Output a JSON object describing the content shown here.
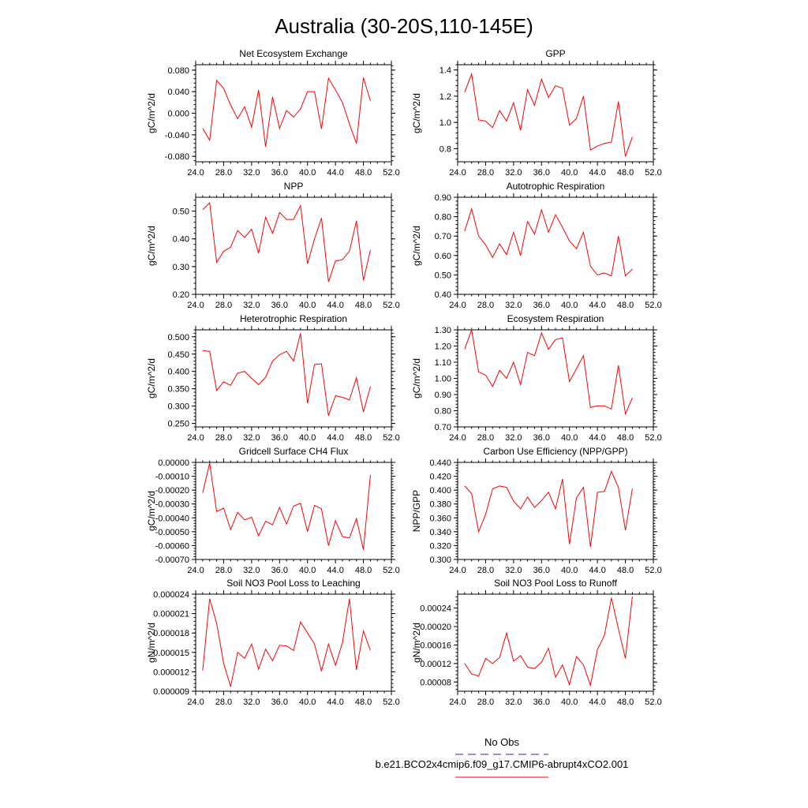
{
  "title": "Australia (30-20S,110-145E)",
  "colors": {
    "series": "#ff0000",
    "obs": "#5050c8",
    "axis": "#000000"
  },
  "legend": {
    "placement": "bottom-center",
    "entries": [
      {
        "label": "No Obs",
        "style": "dashed",
        "color": "#5050c8"
      },
      {
        "label": "b.e21.BCO2x4cmip6.f09_g17.CMIP6-abrupt4xCO2.001",
        "style": "solid",
        "color": "#ff0000"
      }
    ]
  },
  "chart_data": [
    {
      "type": "line",
      "title": "Net Ecosystem Exchange",
      "ylabel": "gC/m^2/d",
      "xlim": [
        24,
        52
      ],
      "ylim": [
        -0.09,
        0.09
      ],
      "xticks": [
        "24.0",
        "28.0",
        "32.0",
        "36.0",
        "40.0",
        "44.0",
        "48.0",
        "52.0"
      ],
      "yticks": [
        -0.08,
        -0.04,
        0.0,
        0.04,
        0.08
      ],
      "ytick_labels": [
        "-0.080",
        "-0.040",
        "0.000",
        "0.040",
        "0.080"
      ],
      "x": [
        25,
        26,
        27,
        28,
        29,
        30,
        31,
        32,
        33,
        34,
        35,
        36,
        37,
        38,
        39,
        40,
        41,
        42,
        43,
        44,
        45,
        46,
        47,
        48,
        49
      ],
      "values": [
        -0.028,
        -0.05,
        0.061,
        0.046,
        0.015,
        -0.01,
        0.012,
        -0.026,
        0.043,
        -0.062,
        0.03,
        -0.028,
        0.005,
        -0.007,
        0.008,
        0.04,
        0.04,
        -0.029,
        0.065,
        0.043,
        0.02,
        -0.02,
        -0.056,
        0.066,
        0.023
      ]
    },
    {
      "type": "line",
      "title": "GPP",
      "ylabel": "gC/m^2/d",
      "xlim": [
        24,
        52
      ],
      "ylim": [
        0.7,
        1.44
      ],
      "xticks": [
        "24.0",
        "28.0",
        "32.0",
        "36.0",
        "40.0",
        "44.0",
        "48.0",
        "52.0"
      ],
      "yticks": [
        0.8,
        1.0,
        1.2,
        1.4
      ],
      "ytick_labels": [
        "0.8",
        "1.0",
        "1.2",
        "1.4"
      ],
      "x": [
        25,
        26,
        27,
        28,
        29,
        30,
        31,
        32,
        33,
        34,
        35,
        36,
        37,
        38,
        39,
        40,
        41,
        42,
        43,
        44,
        45,
        46,
        47,
        48,
        49
      ],
      "values": [
        1.23,
        1.37,
        1.02,
        1.01,
        0.96,
        1.09,
        1.01,
        1.15,
        0.94,
        1.25,
        1.13,
        1.33,
        1.19,
        1.28,
        1.26,
        0.98,
        1.03,
        1.2,
        0.79,
        0.82,
        0.84,
        0.85,
        1.16,
        0.74,
        0.89
      ]
    },
    {
      "type": "line",
      "title": "NPP",
      "ylabel": "gC/m^2/d",
      "xlim": [
        24,
        52
      ],
      "ylim": [
        0.2,
        0.55
      ],
      "xticks": [
        "24.0",
        "28.0",
        "32.0",
        "36.0",
        "40.0",
        "44.0",
        "48.0",
        "52.0"
      ],
      "yticks": [
        0.2,
        0.3,
        0.4,
        0.5
      ],
      "ytick_labels": [
        "0.20",
        "0.30",
        "0.40",
        "0.50"
      ],
      "x": [
        25,
        26,
        27,
        28,
        29,
        30,
        31,
        32,
        33,
        34,
        35,
        36,
        37,
        38,
        39,
        40,
        41,
        42,
        43,
        44,
        45,
        46,
        47,
        48,
        49
      ],
      "values": [
        0.505,
        0.53,
        0.315,
        0.355,
        0.37,
        0.43,
        0.405,
        0.435,
        0.348,
        0.478,
        0.42,
        0.495,
        0.47,
        0.47,
        0.52,
        0.31,
        0.4,
        0.475,
        0.245,
        0.32,
        0.325,
        0.355,
        0.465,
        0.25,
        0.36
      ]
    },
    {
      "type": "line",
      "title": "Autotrophic Respiration",
      "ylabel": "gC/m^2/d",
      "xlim": [
        24,
        52
      ],
      "ylim": [
        0.4,
        0.9
      ],
      "xticks": [
        "24.0",
        "28.0",
        "32.0",
        "36.0",
        "40.0",
        "44.0",
        "48.0",
        "52.0"
      ],
      "yticks": [
        0.4,
        0.5,
        0.6,
        0.7,
        0.8,
        0.9
      ],
      "ytick_labels": [
        "0.40",
        "0.50",
        "0.60",
        "0.70",
        "0.80",
        "0.90"
      ],
      "x": [
        25,
        26,
        27,
        28,
        29,
        30,
        31,
        32,
        33,
        34,
        35,
        36,
        37,
        38,
        39,
        40,
        41,
        42,
        43,
        44,
        45,
        46,
        47,
        48,
        49
      ],
      "values": [
        0.725,
        0.84,
        0.7,
        0.655,
        0.59,
        0.66,
        0.605,
        0.72,
        0.6,
        0.775,
        0.71,
        0.835,
        0.72,
        0.81,
        0.745,
        0.675,
        0.635,
        0.72,
        0.545,
        0.5,
        0.51,
        0.495,
        0.7,
        0.495,
        0.53
      ]
    },
    {
      "type": "line",
      "title": "Heterotrophic Respiration",
      "ylabel": "gC/m^2/d",
      "xlim": [
        24,
        52
      ],
      "ylim": [
        0.24,
        0.52
      ],
      "xticks": [
        "24.0",
        "28.0",
        "32.0",
        "36.0",
        "40.0",
        "44.0",
        "48.0",
        "52.0"
      ],
      "yticks": [
        0.25,
        0.3,
        0.35,
        0.4,
        0.45,
        0.5
      ],
      "ytick_labels": [
        "0.250",
        "0.300",
        "0.350",
        "0.400",
        "0.450",
        "0.500"
      ],
      "x": [
        25,
        26,
        27,
        28,
        29,
        30,
        31,
        32,
        33,
        34,
        35,
        36,
        37,
        38,
        39,
        40,
        41,
        42,
        43,
        44,
        45,
        46,
        47,
        48,
        49
      ],
      "values": [
        0.46,
        0.458,
        0.345,
        0.37,
        0.36,
        0.395,
        0.4,
        0.38,
        0.362,
        0.383,
        0.43,
        0.448,
        0.458,
        0.43,
        0.51,
        0.308,
        0.42,
        0.422,
        0.272,
        0.33,
        0.325,
        0.318,
        0.382,
        0.283,
        0.356
      ]
    },
    {
      "type": "line",
      "title": "Ecosystem Respiration",
      "ylabel": "gC/m^2/d",
      "xlim": [
        24,
        52
      ],
      "ylim": [
        0.7,
        1.3
      ],
      "xticks": [
        "24.0",
        "28.0",
        "32.0",
        "36.0",
        "40.0",
        "44.0",
        "48.0",
        "52.0"
      ],
      "yticks": [
        0.7,
        0.8,
        0.9,
        1.0,
        1.1,
        1.2,
        1.3
      ],
      "ytick_labels": [
        "0.70",
        "0.80",
        "0.90",
        "1.00",
        "1.10",
        "1.20",
        "1.30"
      ],
      "x": [
        25,
        26,
        27,
        28,
        29,
        30,
        31,
        32,
        33,
        34,
        35,
        36,
        37,
        38,
        39,
        40,
        41,
        42,
        43,
        44,
        45,
        46,
        47,
        48,
        49
      ],
      "values": [
        1.18,
        1.3,
        1.04,
        1.02,
        0.95,
        1.05,
        1.0,
        1.1,
        0.96,
        1.16,
        1.14,
        1.28,
        1.18,
        1.24,
        1.25,
        0.98,
        1.06,
        1.14,
        0.82,
        0.83,
        0.83,
        0.81,
        1.08,
        0.78,
        0.88
      ]
    },
    {
      "type": "line",
      "title": "Gridcell Surface CH4 Flux",
      "ylabel": "gC/m^2/d",
      "xlim": [
        24,
        52
      ],
      "ylim": [
        -0.0007,
        0.0
      ],
      "xticks": [
        "24.0",
        "28.0",
        "32.0",
        "36.0",
        "40.0",
        "44.0",
        "48.0",
        "52.0"
      ],
      "yticks": [
        -0.0007,
        -0.0006,
        -0.0005,
        -0.0004,
        -0.0003,
        -0.0002,
        -0.0001,
        0.0
      ],
      "ytick_labels": [
        "-0.00070",
        "-0.00060",
        "-0.00050",
        "-0.00040",
        "-0.00030",
        "-0.00020",
        "-0.00010",
        "0.00000"
      ],
      "x": [
        25,
        26,
        27,
        28,
        29,
        30,
        31,
        32,
        33,
        34,
        35,
        36,
        37,
        38,
        39,
        40,
        41,
        42,
        43,
        44,
        45,
        46,
        47,
        48,
        49
      ],
      "values": [
        -0.00022,
        -5e-06,
        -0.000355,
        -0.00033,
        -0.000485,
        -0.00036,
        -0.000415,
        -0.000395,
        -0.00053,
        -0.000425,
        -0.00045,
        -0.000325,
        -0.000445,
        -0.000315,
        -0.000295,
        -0.0005,
        -0.00031,
        -0.000335,
        -0.0006,
        -0.00042,
        -0.000535,
        -0.000545,
        -0.000405,
        -0.00063,
        -9e-05
      ]
    },
    {
      "type": "line",
      "title": "Carbon Use Efficiency (NPP/GPP)",
      "ylabel": "NPP/GPP",
      "xlim": [
        24,
        52
      ],
      "ylim": [
        0.3,
        0.44
      ],
      "xticks": [
        "24.0",
        "28.0",
        "32.0",
        "36.0",
        "40.0",
        "44.0",
        "48.0",
        "52.0"
      ],
      "yticks": [
        0.3,
        0.32,
        0.34,
        0.36,
        0.38,
        0.4,
        0.42,
        0.44
      ],
      "ytick_labels": [
        "0.300",
        "0.320",
        "0.340",
        "0.360",
        "0.380",
        "0.400",
        "0.420",
        "0.440"
      ],
      "x": [
        25,
        26,
        27,
        28,
        29,
        30,
        31,
        32,
        33,
        34,
        35,
        36,
        37,
        38,
        39,
        40,
        41,
        42,
        43,
        44,
        45,
        46,
        47,
        48,
        49
      ],
      "values": [
        0.406,
        0.395,
        0.34,
        0.365,
        0.402,
        0.406,
        0.404,
        0.384,
        0.373,
        0.39,
        0.375,
        0.385,
        0.397,
        0.373,
        0.416,
        0.322,
        0.389,
        0.404,
        0.318,
        0.397,
        0.398,
        0.427,
        0.404,
        0.342,
        0.402
      ]
    },
    {
      "type": "line",
      "title": "Soil NO3 Pool Loss to Leaching",
      "ylabel": "gN/m^2/d",
      "xlim": [
        24,
        52
      ],
      "ylim": [
        9e-06,
        2.4e-05
      ],
      "xticks": [
        "24.0",
        "28.0",
        "32.0",
        "36.0",
        "40.0",
        "44.0",
        "48.0",
        "52.0"
      ],
      "yticks": [
        9e-06,
        1.2e-05,
        1.5e-05,
        1.8e-05,
        2.1e-05,
        2.4e-05
      ],
      "ytick_labels": [
        "0.000009",
        "0.000012",
        "0.000015",
        "0.000018",
        "0.000021",
        "0.000024"
      ],
      "x": [
        25,
        26,
        27,
        28,
        29,
        30,
        31,
        32,
        33,
        34,
        35,
        36,
        37,
        38,
        39,
        40,
        41,
        42,
        43,
        44,
        45,
        46,
        47,
        48,
        49
      ],
      "values": [
        1.22e-05,
        2.33e-05,
        1.95e-05,
        1.33e-05,
        9.7e-06,
        1.5e-05,
        1.41e-05,
        1.63e-05,
        1.24e-05,
        1.55e-05,
        1.37e-05,
        1.61e-05,
        1.6e-05,
        1.53e-05,
        1.97e-05,
        1.8e-05,
        1.63e-05,
        1.21e-05,
        1.63e-05,
        1.3e-05,
        1.65e-05,
        2.33e-05,
        1.23e-05,
        1.83e-05,
        1.53e-05
      ]
    },
    {
      "type": "line",
      "title": "Soil NO3 Pool Loss to Runoff",
      "ylabel": "gN/m^2/d",
      "xlim": [
        24,
        52
      ],
      "ylim": [
        6e-05,
        0.00027
      ],
      "xticks": [
        "24.0",
        "28.0",
        "32.0",
        "36.0",
        "40.0",
        "44.0",
        "48.0",
        "52.0"
      ],
      "yticks": [
        8e-05,
        0.00012,
        0.00016,
        0.0002,
        0.00024
      ],
      "ytick_labels": [
        "0.00008",
        "0.00012",
        "0.00016",
        "0.00020",
        "0.00024"
      ],
      "x": [
        25,
        26,
        27,
        28,
        29,
        30,
        31,
        32,
        33,
        34,
        35,
        36,
        37,
        38,
        39,
        40,
        41,
        42,
        43,
        44,
        45,
        46,
        47,
        48,
        49
      ],
      "values": [
        0.00012,
        9.7e-05,
        9.3e-05,
        0.000131,
        0.00012,
        0.000133,
        0.000186,
        0.000125,
        0.000137,
        0.000112,
        0.000109,
        0.000123,
        0.000153,
        9e-05,
        0.000117,
        7.4e-05,
        0.000135,
        0.000117,
        7.3e-05,
        0.00015,
        0.000181,
        0.000262,
        0.000195,
        0.000131,
        0.000265
      ]
    }
  ]
}
